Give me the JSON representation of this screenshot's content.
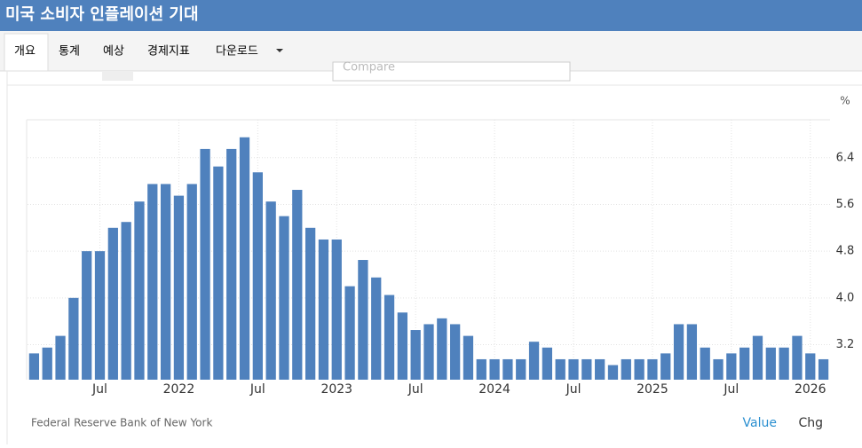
{
  "header": {
    "title": "미국 소비자 인플레이션 기대"
  },
  "tabs": [
    "개요",
    "통계",
    "예상",
    "경제지표",
    "다운로드"
  ],
  "toolbar": {
    "compare": "Compare"
  },
  "footer": {
    "source": "Federal Reserve Bank of New York",
    "value": "Value",
    "chg": "Chg"
  },
  "chart_data": {
    "type": "bar",
    "unit": "%",
    "color": "#4f81bd",
    "grid": true,
    "categories": [
      null,
      null,
      null,
      null,
      null,
      "Jul",
      null,
      null,
      null,
      null,
      null,
      "2022",
      null,
      null,
      null,
      null,
      null,
      "Jul",
      null,
      null,
      null,
      null,
      null,
      "2023",
      null,
      null,
      null,
      null,
      null,
      "Jul",
      null,
      null,
      null,
      null,
      null,
      "2024",
      null,
      null,
      null,
      null,
      null,
      "Jul",
      null,
      null,
      null,
      null,
      null,
      "2025",
      null,
      null,
      null,
      null,
      null,
      "Jul",
      null,
      null,
      null,
      null,
      null,
      "2026",
      null
    ],
    "values": [
      3.05,
      3.15,
      3.35,
      4.0,
      4.8,
      4.8,
      5.2,
      5.3,
      5.65,
      5.95,
      5.95,
      5.75,
      5.95,
      6.55,
      6.25,
      6.55,
      6.75,
      6.15,
      5.65,
      5.4,
      5.85,
      5.2,
      5.0,
      5.0,
      4.2,
      4.65,
      4.35,
      4.05,
      3.75,
      3.45,
      3.55,
      3.65,
      3.55,
      3.35,
      2.95,
      2.95,
      2.95,
      2.95,
      3.25,
      3.15,
      2.95,
      2.95,
      2.95,
      2.95,
      2.85,
      2.95,
      2.95,
      2.95,
      3.05,
      3.55,
      3.55,
      3.15,
      2.95,
      3.05,
      3.15,
      3.35,
      3.15,
      3.15,
      3.35,
      3.05,
      2.95
    ],
    "ylim": [
      2.6,
      7.05
    ],
    "yticks": [
      3.2,
      {
        "value": 4,
        "label": "4.0"
      },
      4.8,
      5.6,
      6.4
    ]
  }
}
